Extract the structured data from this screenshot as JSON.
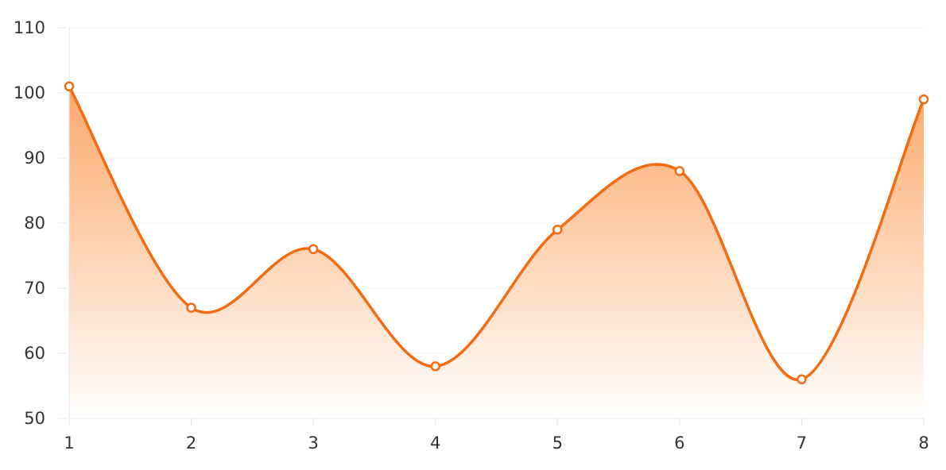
{
  "chart_data": {
    "type": "area",
    "x": [
      "1",
      "2",
      "3",
      "4",
      "5",
      "6",
      "7",
      "8"
    ],
    "series": [
      {
        "values": [
          101,
          67,
          76,
          58,
          79,
          88,
          56,
          99
        ]
      }
    ],
    "ylim": [
      50,
      110
    ],
    "yticks": [
      "50",
      "60",
      "70",
      "80",
      "90",
      "100",
      "110"
    ],
    "grid": true,
    "smooth": true,
    "colors": {
      "line": "#f26b10",
      "fill_top": "#fca86a",
      "fill_bottom": "#ffffff",
      "marker_fill": "#ffffff",
      "grid": "#f6f6f6",
      "axis": "#e4e4e4",
      "tick_text": "#333333"
    }
  }
}
